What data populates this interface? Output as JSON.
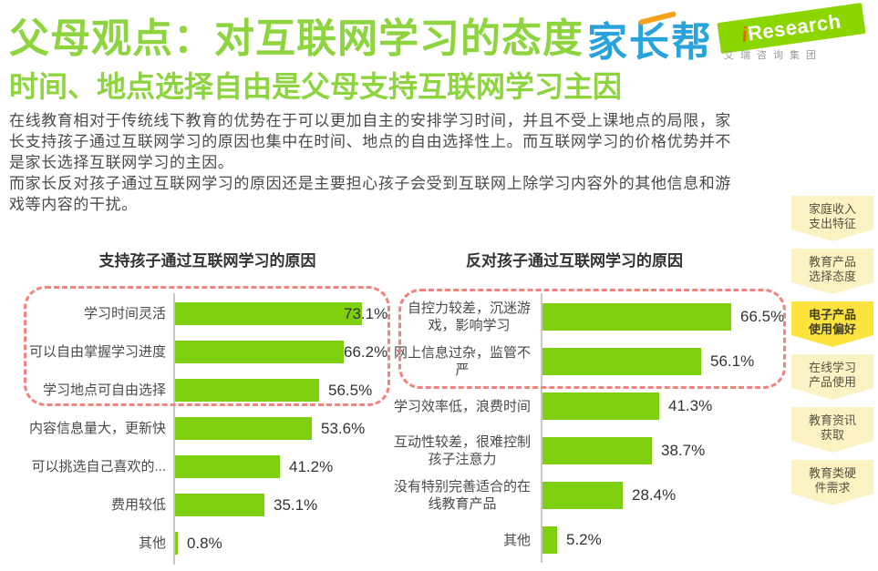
{
  "header": {
    "title": "父母观点：对互联网学习的态度",
    "subtitle": "时间、地点选择自由是父母支持互联网学习主因"
  },
  "logos": {
    "jiazhangbang": "家长帮",
    "iresearch": {
      "prefix": "i",
      "name": "Research",
      "subtitle": "艾瑞咨询集团"
    }
  },
  "intro": {
    "paragraph1": "在线教育相对于传统线下教育的优势在于可以更加自主的安排学习时间，并且不受上课地点的局限，家\n长支持孩子通过互联网学习的原因也集中在时间、地点的自由选择性上。而互联网学习的价格优势并不\n是家长选择互联网学习的主因。",
    "paragraph2": "而家长反对孩子通过互联网学习的原因还是主要担心孩子会受到互联网上除学习内容外的其他信息和游\n戏等内容的干扰。"
  },
  "chart_data": [
    {
      "type": "bar",
      "orientation": "horizontal",
      "title": "支持孩子通过互联网学习的原因",
      "categories": [
        "学习时间灵活",
        "可以自由掌握学习进度",
        "学习地点可自由选择",
        "内容信息量大，更新快",
        "可以挑选自己喜欢的...",
        "费用较低",
        "其他"
      ],
      "values": [
        73.1,
        66.2,
        56.5,
        53.6,
        41.2,
        35.1,
        0.8
      ],
      "unit": "%",
      "xlim": [
        0,
        83
      ],
      "grid": false,
      "data_labels": "outside-end",
      "highlighted_rows": [
        0,
        1,
        2
      ]
    },
    {
      "type": "bar",
      "orientation": "horizontal",
      "title": "反对孩子通过互联网学习的原因",
      "categories": [
        "自控力较差，沉迷游\n戏，影响学习",
        "网上信息过杂，监管不\n严",
        "学习效率低，浪费时间",
        "互动性较差，很难控制\n孩子注意力",
        "没有特别完善适合的在\n线教育产品",
        "其他"
      ],
      "values": [
        66.5,
        56.1,
        41.3,
        38.7,
        28.4,
        5.2
      ],
      "unit": "%",
      "xlim": [
        0,
        86
      ],
      "grid": false,
      "data_labels": "outside-end",
      "highlighted_rows": [
        0,
        1
      ]
    }
  ],
  "sidebar": {
    "tabs": [
      {
        "label": "家庭收入\n支出特征",
        "active": false
      },
      {
        "label": "教育产品\n选择态度",
        "active": false
      },
      {
        "label": "电子产品\n使用偏好",
        "active": true
      },
      {
        "label": "在线学习\n产品使用",
        "active": false
      },
      {
        "label": "教育资讯\n获取",
        "active": false
      },
      {
        "label": "教育类硬\n件需求",
        "active": false
      }
    ]
  },
  "colors": {
    "heading_green": "#8dd43e",
    "bar_green": "#7ed00e",
    "flag_green": "#8cd600",
    "logo_blue": "#29a3db",
    "accent_orange": "#f5a11d",
    "dashed_pink": "#f2837d",
    "tab_active_yellow": "#fde33d",
    "tab_inactive_yellow": "#fcf3c5",
    "axis_gray": "#c9c9c9"
  }
}
